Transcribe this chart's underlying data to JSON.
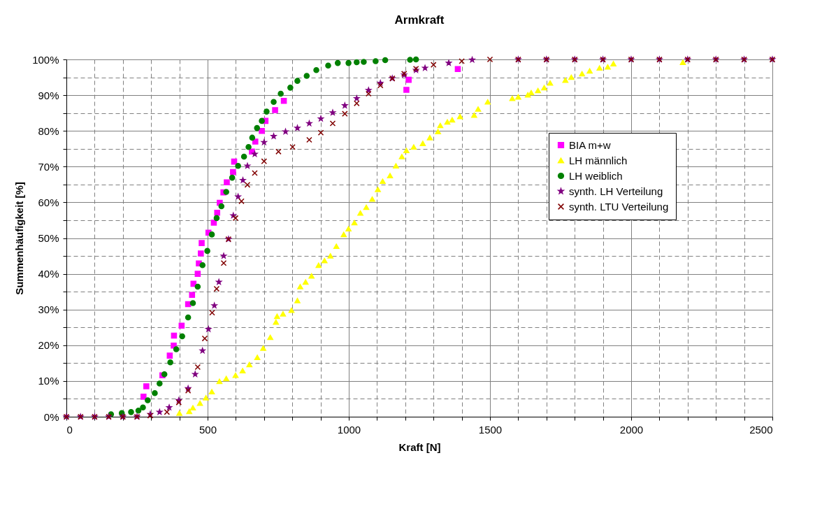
{
  "chart_data": {
    "type": "scatter",
    "title": "Armkraft",
    "xlabel": "Kraft [N]",
    "ylabel": "Summenhäufigkeit [%]",
    "xlim": [
      0,
      2500
    ],
    "ylim": [
      0,
      100
    ],
    "xticks": [
      0,
      {
        "value": 100,
        "label": null
      },
      {
        "value": 200,
        "label": null
      },
      {
        "value": 300,
        "label": null
      },
      {
        "value": 400,
        "label": null
      },
      500,
      {
        "value": 600,
        "label": null
      },
      {
        "value": 700,
        "label": null
      },
      {
        "value": 800,
        "label": null
      },
      {
        "value": 900,
        "label": null
      },
      1000,
      {
        "value": 1100,
        "label": null
      },
      {
        "value": 1200,
        "label": null
      },
      {
        "value": 1300,
        "label": null
      },
      {
        "value": 1400,
        "label": null
      },
      1500,
      {
        "value": 1600,
        "label": null
      },
      {
        "value": 1700,
        "label": null
      },
      {
        "value": 1800,
        "label": null
      },
      {
        "value": 1900,
        "label": null
      },
      2000,
      {
        "value": 2100,
        "label": null
      },
      {
        "value": 2200,
        "label": null
      },
      {
        "value": 2300,
        "label": null
      },
      {
        "value": 2400,
        "label": null
      },
      2500
    ],
    "yticks": [
      {
        "value": 0,
        "label": "0%"
      },
      {
        "value": 5,
        "label": null
      },
      {
        "value": 10,
        "label": "10%"
      },
      {
        "value": 15,
        "label": null
      },
      {
        "value": 20,
        "label": "20%"
      },
      {
        "value": 25,
        "label": null
      },
      {
        "value": 30,
        "label": "30%"
      },
      {
        "value": 35,
        "label": null
      },
      {
        "value": 40,
        "label": "40%"
      },
      {
        "value": 45,
        "label": null
      },
      {
        "value": 50,
        "label": "50%"
      },
      {
        "value": 55,
        "label": null
      },
      {
        "value": 60,
        "label": "60%"
      },
      {
        "value": 65,
        "label": null
      },
      {
        "value": 70,
        "label": "70%"
      },
      {
        "value": 75,
        "label": null
      },
      {
        "value": 80,
        "label": "80%"
      },
      {
        "value": 85,
        "label": null
      },
      {
        "value": 90,
        "label": "90%"
      },
      {
        "value": 95,
        "label": null
      },
      {
        "value": 100,
        "label": "100%"
      }
    ],
    "grid": true,
    "legend": "right",
    "series": [
      {
        "name": "BIA m+w",
        "color": "#ff00ff",
        "marker": "square",
        "x": [
          273,
          283,
          340,
          366,
          380,
          381,
          408,
          431,
          445,
          450,
          465,
          469,
          476,
          479,
          503,
          522,
          534,
          543,
          556,
          568,
          590,
          594,
          657,
          669,
          692,
          705,
          739,
          770,
          1204,
          1212,
          1386
        ],
        "values": [
          5.6,
          8.5,
          11.6,
          17.1,
          19.9,
          22.7,
          25.5,
          31.5,
          34.1,
          37.2,
          40,
          42.9,
          45.7,
          48.6,
          51.5,
          54.3,
          57.1,
          59.9,
          62.8,
          65.6,
          68.5,
          71.4,
          74.2,
          77,
          80,
          82.8,
          85.8,
          88.4,
          91.5,
          94.3,
          97.3
        ]
      },
      {
        "name": "LH männlich",
        "color": "#ffff00",
        "marker": "triangle",
        "x": [
          400,
          435,
          448,
          473,
          494,
          515,
          542,
          566,
          599,
          624,
          648,
          676,
          697,
          722,
          742,
          746,
          767,
          797,
          818,
          828,
          847,
          868,
          893,
          914,
          935,
          956,
          982,
          999,
          1020,
          1041,
          1062,
          1083,
          1103,
          1120,
          1146,
          1167,
          1188,
          1204,
          1230,
          1262,
          1287,
          1316,
          1324,
          1349,
          1366,
          1394,
          1444,
          1458,
          1492,
          1579,
          1600,
          1634,
          1646,
          1670,
          1692,
          1713,
          1767,
          1788,
          1826,
          1853,
          1888,
          1917,
          1937,
          2183
        ],
        "values": [
          1.0,
          1.5,
          2.5,
          3.8,
          5.3,
          7,
          9.9,
          10.7,
          11.6,
          12.9,
          14.6,
          16.6,
          19.2,
          22.2,
          26.5,
          28.1,
          28.8,
          29.8,
          32.5,
          36.4,
          37.7,
          39.4,
          42.4,
          43.7,
          45,
          47.7,
          51,
          52.6,
          54.3,
          57,
          58.6,
          60.9,
          63.6,
          65.9,
          67.5,
          70.2,
          72.8,
          74.5,
          75.5,
          76.5,
          78.1,
          79.8,
          81.5,
          82.5,
          83.1,
          84,
          84.4,
          86.1,
          88.1,
          89.1,
          89.5,
          90.1,
          90.7,
          91.3,
          92.1,
          93.4,
          94.2,
          95,
          96,
          96.8,
          97.6,
          97.9,
          98.8,
          99.2
        ]
      },
      {
        "name": "LH weiblich",
        "color": "#008000",
        "marker": "circle",
        "x": [
          158,
          196,
          229,
          255,
          271,
          288,
          313,
          330,
          347,
          368,
          389,
          410,
          431,
          448,
          465,
          482,
          499,
          515,
          532,
          549,
          566,
          587,
          608,
          629,
          645,
          658,
          675,
          692,
          709,
          734,
          759,
          793,
          818,
          851,
          885,
          927,
          961,
          999,
          1028,
          1053,
          1095,
          1129,
          1217,
          1238
        ],
        "values": [
          0.7,
          1.0,
          1.3,
          1.7,
          2.6,
          4.6,
          6.6,
          9.3,
          11.9,
          15.2,
          18.9,
          22.5,
          27.8,
          31.8,
          36.4,
          42.4,
          46.4,
          51,
          55.6,
          58.9,
          62.9,
          66.9,
          70.2,
          72.8,
          75.5,
          78.1,
          80.8,
          82.8,
          85.4,
          88.1,
          90.4,
          92.1,
          94,
          95.4,
          97,
          98.3,
          99.0,
          99.0,
          99.2,
          99.3,
          99.5,
          99.8,
          99.9,
          100
        ]
      },
      {
        "name": "synth. LH Verteilung",
        "color": "#800080",
        "marker": "star",
        "x": [
          0,
          50,
          100,
          150,
          200,
          250,
          297,
          330,
          364,
          398,
          431,
          456,
          482,
          503,
          524,
          540,
          557,
          574,
          591,
          608,
          625,
          641,
          667,
          700,
          734,
          776,
          818,
          860,
          901,
          943,
          986,
          1028,
          1070,
          1112,
          1154,
          1196,
          1238,
          1270,
          1354,
          1437,
          1600,
          1700,
          1800,
          1900,
          2000,
          2100,
          2200,
          2300,
          2400,
          2500
        ],
        "values": [
          0,
          0,
          0,
          0,
          0,
          0,
          0.7,
          1.3,
          2.6,
          4.6,
          7.9,
          11.9,
          18.5,
          24.5,
          31.1,
          37.7,
          45,
          49.7,
          56.3,
          61.6,
          66.2,
          70.2,
          73.5,
          76.8,
          78.5,
          79.8,
          80.8,
          82.1,
          83.4,
          85.1,
          87.1,
          89.1,
          91.4,
          93.4,
          94.7,
          95.7,
          97.0,
          97.6,
          99,
          99.9,
          100,
          100,
          100,
          100,
          100,
          100,
          100,
          100,
          100,
          100
        ]
      },
      {
        "name": "synth. LTU Verteilung",
        "color": "#800000",
        "marker": "cross",
        "x": [
          0,
          50,
          100,
          150,
          200,
          250,
          297,
          356,
          398,
          431,
          465,
          490,
          516,
          532,
          557,
          574,
          599,
          620,
          641,
          667,
          700,
          751,
          801,
          860,
          901,
          943,
          986,
          1028,
          1070,
          1112,
          1154,
          1196,
          1238,
          1300,
          1400,
          1500,
          1600,
          1700,
          1800,
          1900,
          2000,
          2100,
          2200,
          2300,
          2400,
          2500
        ],
        "values": [
          0,
          0,
          0,
          0,
          0,
          0,
          0.3,
          1.3,
          4,
          7.3,
          13.9,
          21.9,
          29.1,
          35.8,
          43,
          49.7,
          55.6,
          60.3,
          64.9,
          68.2,
          71.5,
          74.2,
          75.5,
          77.5,
          79.5,
          82.1,
          84.8,
          87.7,
          90.4,
          92.7,
          94.7,
          96,
          97.4,
          98.5,
          99.5,
          100,
          100,
          100,
          100,
          100,
          100,
          100,
          100,
          100,
          100,
          100
        ]
      }
    ]
  }
}
